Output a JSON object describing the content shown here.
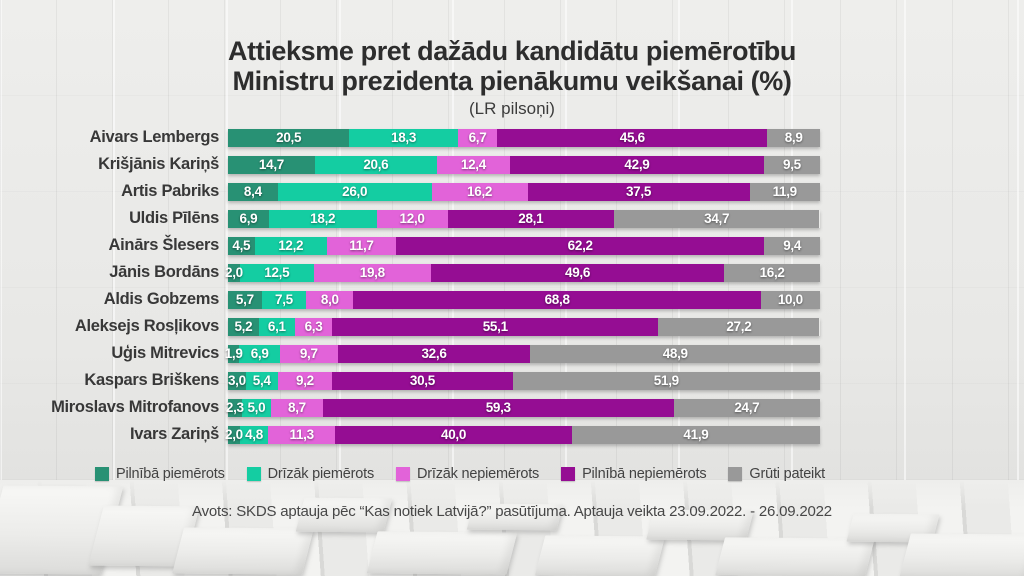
{
  "title": {
    "line1": "Attieksme pret dažādu kandidātu piemērotību",
    "line2": "Ministru prezidenta pienākumu veikšanai (%)",
    "subtitle": "(LR pilsoņi)"
  },
  "footer": {
    "source": "Avots:  SKDS aptauja pēc “Kas notiek Latvijā?” pasūtījuma. Aptauja veikta 23.09.2022. - 26.09.2022"
  },
  "chart_data": {
    "type": "bar",
    "orientation": "horizontal-stacked",
    "unit": "%",
    "xlim": [
      0,
      100
    ],
    "grid": false,
    "legend_position": "bottom",
    "value_label_style": "white bold inside segments, comma decimal",
    "categories": [
      "Aivars Lembergs",
      "Krišjānis Kariņš",
      "Artis Pabriks",
      "Uldis Pīlēns",
      "Ainārs Šlesers",
      "Jānis Bordāns",
      "Aldis Gobzems",
      "Aleksejs Rosļikovs",
      "Uģis Mitrevics",
      "Kaspars Briškens",
      "Miroslavs Mitrofanovs",
      "Ivars Zariņš"
    ],
    "series": [
      {
        "name": "Pilnībā piemērots",
        "color": "#28917486",
        "values": [
          20.5,
          14.7,
          8.4,
          6.9,
          4.5,
          2.0,
          5.7,
          5.2,
          1.9,
          3.0,
          2.3,
          2.0
        ]
      },
      {
        "name": "Drīzāk piemērots",
        "color": "#14cda2",
        "values": [
          18.3,
          20.6,
          26.0,
          18.2,
          12.2,
          12.5,
          7.5,
          6.1,
          6.9,
          5.4,
          5.0,
          4.8
        ]
      },
      {
        "name": "Drīzāk nepiemērots",
        "color": "#e263d9",
        "values": [
          6.7,
          12.4,
          16.2,
          12.0,
          11.7,
          19.8,
          8.0,
          6.3,
          9.7,
          9.2,
          8.7,
          11.3
        ]
      },
      {
        "name": "Pilnībā nepiemērots",
        "color": "#950d93",
        "values": [
          45.6,
          42.9,
          37.5,
          28.1,
          62.2,
          49.6,
          68.8,
          55.1,
          32.6,
          30.5,
          59.3,
          40.0
        ]
      },
      {
        "name": "Grūti pateikt",
        "color": "#999999",
        "values": [
          8.9,
          9.5,
          11.9,
          34.7,
          9.4,
          16.2,
          10.0,
          27.2,
          48.9,
          51.9,
          24.7,
          41.9
        ]
      }
    ]
  },
  "series_color_fix": {
    "fully_suitable": "#289174"
  }
}
